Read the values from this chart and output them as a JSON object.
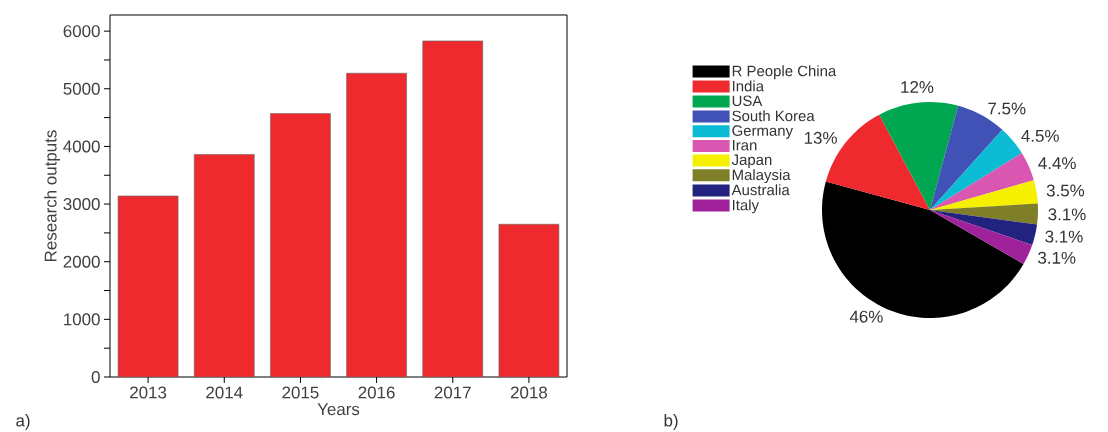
{
  "chart_data": [
    {
      "type": "bar",
      "categories": [
        "2013",
        "2014",
        "2015",
        "2016",
        "2017",
        "2018"
      ],
      "values": [
        3140,
        3860,
        4570,
        5270,
        5830,
        2650
      ],
      "color": "#ee2a2e",
      "xlabel": "Years",
      "ylabel": "Research outputs",
      "ylim": [
        0,
        6280
      ],
      "yticks": [
        0,
        {
          "value": 500,
          "label": null
        },
        1000,
        {
          "value": 1500,
          "label": null
        },
        2000,
        {
          "value": 2500,
          "label": null
        },
        3000,
        {
          "value": 3500,
          "label": null
        },
        4000,
        {
          "value": 4500,
          "label": null
        },
        5000,
        {
          "value": 5500,
          "label": null
        },
        6000
      ],
      "annotations": [
        "a)"
      ]
    },
    {
      "type": "pie",
      "categories": [
        "R People China",
        "India",
        "USA",
        "South Korea",
        "Germany",
        "Iran",
        "Japan",
        "Malaysia",
        "Australia",
        "Italy"
      ],
      "values": [
        46,
        13,
        12,
        7.5,
        4.5,
        4.4,
        3.5,
        3.1,
        3.1,
        3.1
      ],
      "value_labels": [
        "46%",
        "13%",
        "12%",
        "7.5%",
        "4.5%",
        "4.4%",
        "3.5%",
        "3.1%",
        "3.1%",
        "3.1%"
      ],
      "colors": [
        "#000000",
        "#ee2a2e",
        "#00a650",
        "#4052b5",
        "#0cbcd4",
        "#d957b0",
        "#f5f000",
        "#7f7f2a",
        "#22227f",
        "#a0229a"
      ],
      "legend": "top left",
      "annotations": [
        "b)"
      ]
    }
  ]
}
